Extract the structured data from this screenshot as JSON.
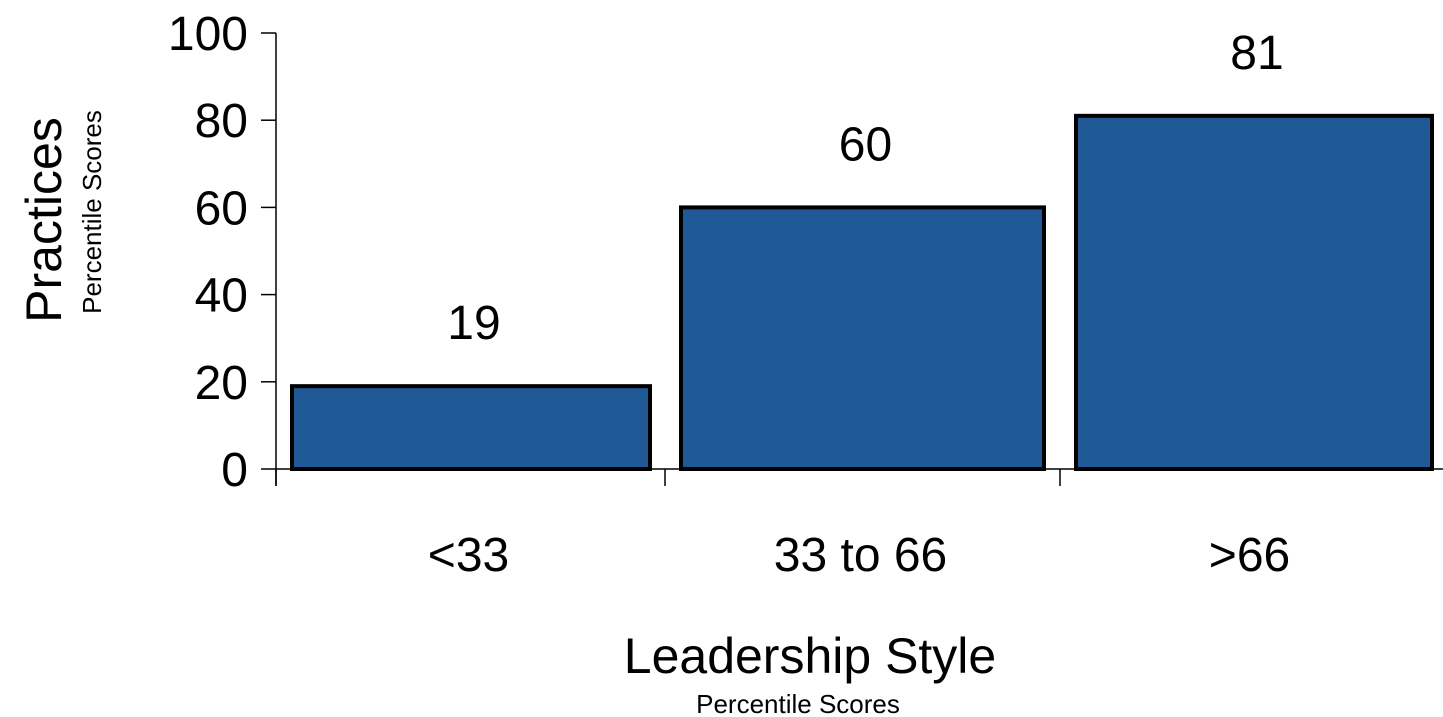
{
  "chart_data": {
    "type": "bar",
    "categories": [
      "<33",
      "33 to 66",
      ">66"
    ],
    "values": [
      19,
      60,
      81
    ],
    "data_labels": [
      "19",
      "60",
      "81"
    ],
    "title": "",
    "xlabel": "Leadership Style",
    "xlabel_sub": "Percentile Scores",
    "ylabel": "Practices",
    "ylabel_sub": "Percentile Scores",
    "ylim": [
      0,
      100
    ],
    "yticks": [
      0,
      20,
      40,
      60,
      80,
      100
    ],
    "grid": false,
    "legend": "none",
    "colors": {
      "bar": "#1f5a96",
      "bar_outline": "#000000"
    }
  }
}
